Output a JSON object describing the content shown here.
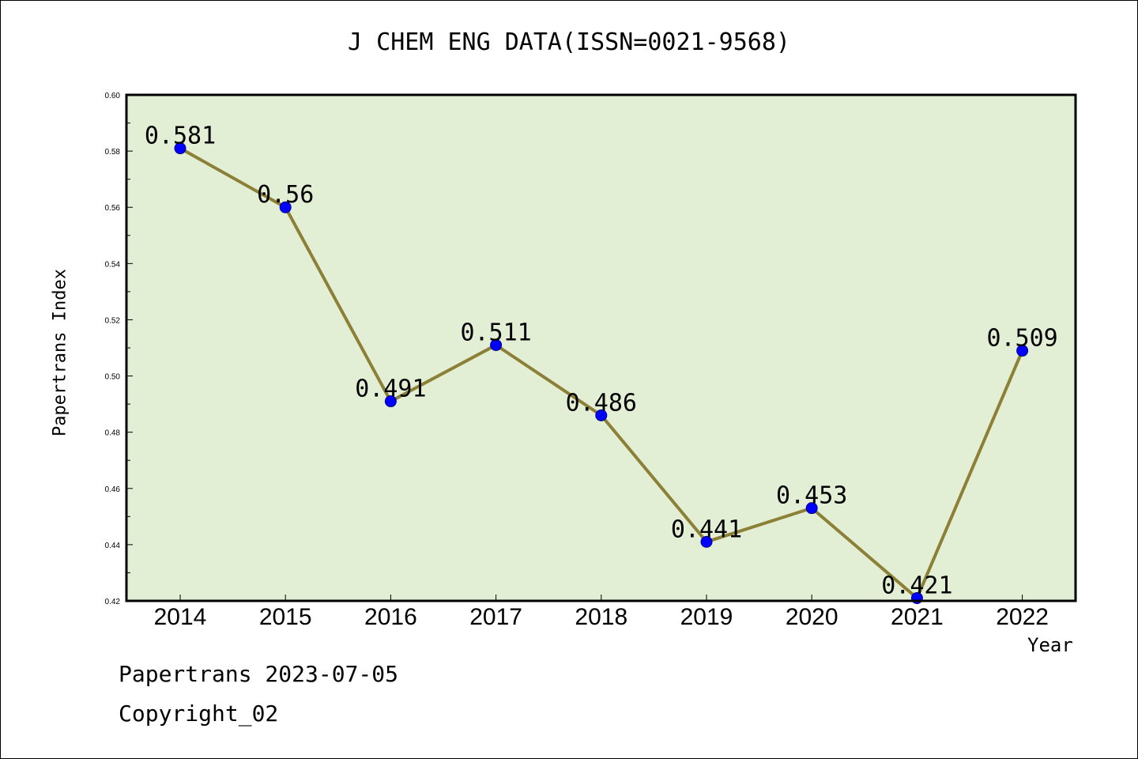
{
  "chart_data": {
    "type": "line",
    "title": "J CHEM ENG DATA(ISSN=0021-9568)",
    "xlabel": "Year",
    "ylabel": "Papertrans Index",
    "categories": [
      "2014",
      "2015",
      "2016",
      "2017",
      "2018",
      "2019",
      "2020",
      "2021",
      "2022"
    ],
    "values": [
      0.581,
      0.56,
      0.491,
      0.511,
      0.486,
      0.441,
      0.453,
      0.421,
      0.509
    ],
    "value_labels": [
      "0.581",
      "0.56",
      "0.491",
      "0.511",
      "0.486",
      "0.441",
      "0.453",
      "0.421",
      "0.509"
    ],
    "ylim": [
      0.42,
      0.6
    ],
    "yticks": [
      "0.42",
      "0.44",
      "0.46",
      "0.48",
      "0.50",
      "0.52",
      "0.54",
      "0.56",
      "0.58",
      "0.60"
    ],
    "grid": false,
    "colors": {
      "plot_background": "#e2efd4",
      "line": "#8c7f36",
      "marker": "#0000ff"
    }
  },
  "footer": {
    "line1": "Papertrans 2023-07-05",
    "line2": "Copyright_02"
  }
}
